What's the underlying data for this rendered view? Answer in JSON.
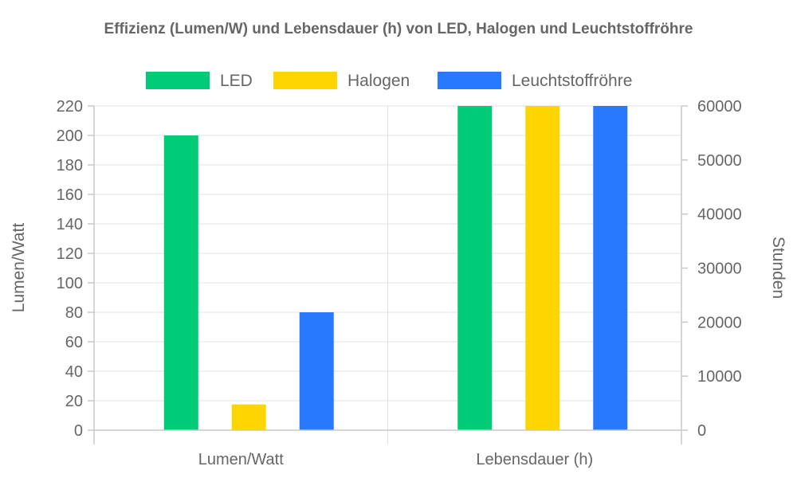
{
  "chart_data": {
    "type": "bar",
    "title": "Effizienz (Lumen/W) und Lebensdauer (h) von LED, Halogen und Leuchtstoffröhre",
    "categories": [
      "Lumen/Watt",
      "Lebensdauer (h)"
    ],
    "y_left": {
      "label": "Lumen/Watt",
      "range": [
        0,
        220
      ],
      "ticks": [
        0,
        20,
        40,
        60,
        80,
        100,
        120,
        140,
        160,
        180,
        200,
        220
      ]
    },
    "y_right": {
      "label": "Stunden",
      "range": [
        0,
        60000
      ],
      "ticks": [
        0,
        10000,
        20000,
        30000,
        40000,
        50000,
        60000
      ]
    },
    "series": [
      {
        "name": "LED",
        "color": "#00cc77",
        "values": [
          200,
          60000
        ]
      },
      {
        "name": "Halogen",
        "color": "#ffd500",
        "values": [
          17.5,
          60000
        ]
      },
      {
        "name": "Leuchtstoffröhre",
        "color": "#2979ff",
        "values": [
          80,
          60000
        ]
      }
    ],
    "axis_for_category": [
      "left",
      "right"
    ],
    "legend_position": "top-center",
    "grid": true
  }
}
